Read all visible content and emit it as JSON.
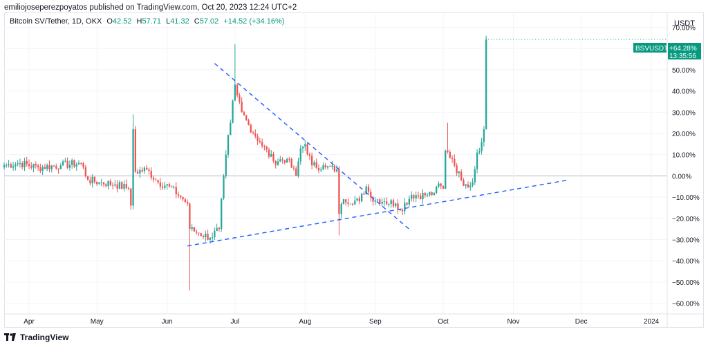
{
  "header": {
    "publisher_line": "emiliojoseperezpoyatos published on TradingView.com, Oct 20, 2023 12:24 UTC+2"
  },
  "legend": {
    "symbol": "Bitcoin SV/Tether, 1D, OKX",
    "open_label": "O",
    "open_value": "42.52",
    "high_label": "H",
    "high_value": "57.71",
    "low_label": "L",
    "low_value": "41.32",
    "close_label": "C",
    "close_value": "57.02",
    "change": "+14.52 (+34.16%)"
  },
  "price_axis": {
    "currency": "USDT"
  },
  "badge": {
    "symbol": "BSVUSDT",
    "change": "+64.28%",
    "countdown": "13:35:56"
  },
  "footer": {
    "brand": "TradingView"
  },
  "colors": {
    "up": "#26a69a",
    "down": "#ef5350",
    "trendline": "#2962ff",
    "badge_bg": "#089981",
    "grid": "#f0f3fa",
    "zero_line": "#b2b5be"
  },
  "chart_data": {
    "type": "candlestick",
    "y_unit": "percent",
    "ylim": [
      -65,
      77
    ],
    "y_ticks": [
      70,
      60,
      50,
      40,
      30,
      20,
      10,
      0,
      -10,
      -20,
      -30,
      -40,
      -50,
      -60
    ],
    "y_tick_labels": [
      "70.00%",
      "60.00%",
      "50.00%",
      "40.00%",
      "30.00%",
      "20.00%",
      "10.00%",
      "0.00%",
      "−10.00%",
      "−20.00%",
      "−30.00%",
      "−40.00%",
      "−50.00%",
      "−60.00%"
    ],
    "x_start": "2023-03-21",
    "x_end": "2024-01-08",
    "x_ticks": [
      {
        "date": "2023-04-01",
        "label": "Apr"
      },
      {
        "date": "2023-05-01",
        "label": "May"
      },
      {
        "date": "2023-06-01",
        "label": "Jun"
      },
      {
        "date": "2023-07-01",
        "label": "Jul"
      },
      {
        "date": "2023-08-01",
        "label": "Aug"
      },
      {
        "date": "2023-09-01",
        "label": "Sep"
      },
      {
        "date": "2023-10-01",
        "label": "Oct"
      },
      {
        "date": "2023-11-01",
        "label": "Nov"
      },
      {
        "date": "2023-12-01",
        "label": "Dec"
      },
      {
        "date": "2024-01-01",
        "label": "2024"
      }
    ],
    "grid": true,
    "zero_line": true,
    "last_value": 64.28,
    "trendlines": [
      {
        "name": "descending resistance",
        "style": "dashed",
        "start": {
          "date": "2023-06-22",
          "value": 53
        },
        "end": {
          "date": "2023-09-17",
          "value": -26
        }
      },
      {
        "name": "ascending support",
        "style": "dashed",
        "start": {
          "date": "2023-06-10",
          "value": -33
        },
        "end": {
          "date": "2023-11-25",
          "value": -2
        }
      }
    ],
    "anchors": [
      {
        "date": "2023-03-21",
        "value": 5
      },
      {
        "date": "2023-03-28",
        "value": 6
      },
      {
        "date": "2023-04-05",
        "value": 4
      },
      {
        "date": "2023-04-15",
        "value": 5
      },
      {
        "date": "2023-04-24",
        "value": 6
      },
      {
        "date": "2023-04-27",
        "value": -2
      },
      {
        "date": "2023-05-02",
        "value": -3
      },
      {
        "date": "2023-05-09",
        "value": -4
      },
      {
        "date": "2023-05-15",
        "value": -6
      },
      {
        "date": "2023-05-16",
        "value": -14
      },
      {
        "date": "2023-05-17",
        "value": 22
      },
      {
        "date": "2023-05-18",
        "value": 2
      },
      {
        "date": "2023-05-23",
        "value": 3
      },
      {
        "date": "2023-05-28",
        "value": -3
      },
      {
        "date": "2023-06-02",
        "value": -5
      },
      {
        "date": "2023-06-07",
        "value": -10
      },
      {
        "date": "2023-06-10",
        "value": -13
      },
      {
        "date": "2023-06-11",
        "value": -25
      },
      {
        "date": "2023-06-15",
        "value": -27
      },
      {
        "date": "2023-06-20",
        "value": -29
      },
      {
        "date": "2023-06-24",
        "value": -25
      },
      {
        "date": "2023-06-26",
        "value": 0
      },
      {
        "date": "2023-06-27",
        "value": 10
      },
      {
        "date": "2023-06-29",
        "value": 25
      },
      {
        "date": "2023-07-01",
        "value": 43
      },
      {
        "date": "2023-07-02",
        "value": 38
      },
      {
        "date": "2023-07-04",
        "value": 30
      },
      {
        "date": "2023-07-07",
        "value": 24
      },
      {
        "date": "2023-07-12",
        "value": 16
      },
      {
        "date": "2023-07-18",
        "value": 7
      },
      {
        "date": "2023-07-24",
        "value": 8
      },
      {
        "date": "2023-07-28",
        "value": 0
      },
      {
        "date": "2023-07-30",
        "value": 13
      },
      {
        "date": "2023-08-01",
        "value": 15
      },
      {
        "date": "2023-08-04",
        "value": 5
      },
      {
        "date": "2023-08-10",
        "value": 4
      },
      {
        "date": "2023-08-15",
        "value": 3
      },
      {
        "date": "2023-08-16",
        "value": -18
      },
      {
        "date": "2023-08-18",
        "value": -11
      },
      {
        "date": "2023-08-25",
        "value": -12
      },
      {
        "date": "2023-08-28",
        "value": -5
      },
      {
        "date": "2023-08-30",
        "value": -10
      },
      {
        "date": "2023-09-05",
        "value": -12
      },
      {
        "date": "2023-09-10",
        "value": -13
      },
      {
        "date": "2023-09-12",
        "value": -16
      },
      {
        "date": "2023-09-17",
        "value": -9
      },
      {
        "date": "2023-09-24",
        "value": -9
      },
      {
        "date": "2023-09-27",
        "value": -8
      },
      {
        "date": "2023-09-28",
        "value": -5
      },
      {
        "date": "2023-10-01",
        "value": -6
      },
      {
        "date": "2023-10-02",
        "value": 12
      },
      {
        "date": "2023-10-05",
        "value": 8
      },
      {
        "date": "2023-10-09",
        "value": -2
      },
      {
        "date": "2023-10-11",
        "value": -4
      },
      {
        "date": "2023-10-14",
        "value": -3
      },
      {
        "date": "2023-10-16",
        "value": 11
      },
      {
        "date": "2023-10-18",
        "value": 16
      },
      {
        "date": "2023-10-19",
        "value": 22
      },
      {
        "date": "2023-10-20",
        "value": 64.28
      }
    ],
    "spikes": [
      {
        "date": "2023-05-17",
        "high": 29
      },
      {
        "date": "2023-06-11",
        "low": -54
      },
      {
        "date": "2023-07-01",
        "high": 62
      },
      {
        "date": "2023-08-16",
        "low": -28
      },
      {
        "date": "2023-10-03",
        "high": 25
      },
      {
        "date": "2023-10-20",
        "high": 66
      }
    ]
  }
}
